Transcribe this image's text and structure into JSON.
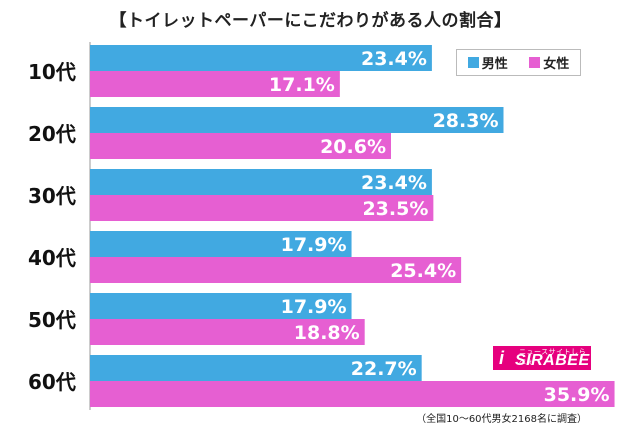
{
  "title": "【トイレットペーパーにこだわりがある人の割合】",
  "legend": {
    "male_label": "男性",
    "female_label": "女性"
  },
  "colors": {
    "male": "#41a9e1",
    "female": "#e65fd2"
  },
  "logo": {
    "text": "SIRABEE",
    "subtext": "ニュースサイトしらべぇ",
    "mark": "i"
  },
  "footnote": "（全国10～60代男女2168名に調査）",
  "chart_data": {
    "type": "bar",
    "orientation": "horizontal",
    "title": "【トイレットペーパーにこだわりがある人の割合】",
    "categories": [
      "10代",
      "20代",
      "30代",
      "40代",
      "50代",
      "60代"
    ],
    "series": [
      {
        "name": "男性",
        "values": [
          23.4,
          28.3,
          23.4,
          17.9,
          17.9,
          22.7
        ],
        "labels": [
          "23.4%",
          "28.3%",
          "23.4%",
          "17.9%",
          "17.9%",
          "22.7%"
        ]
      },
      {
        "name": "女性",
        "values": [
          17.1,
          20.6,
          23.5,
          25.4,
          18.8,
          35.9
        ],
        "labels": [
          "17.1%",
          "20.6%",
          "23.5%",
          "25.4%",
          "18.8%",
          "35.9%"
        ]
      }
    ],
    "xlim": [
      0,
      36
    ],
    "value_suffix": "%",
    "grid": false,
    "legend_position": "top-right"
  }
}
